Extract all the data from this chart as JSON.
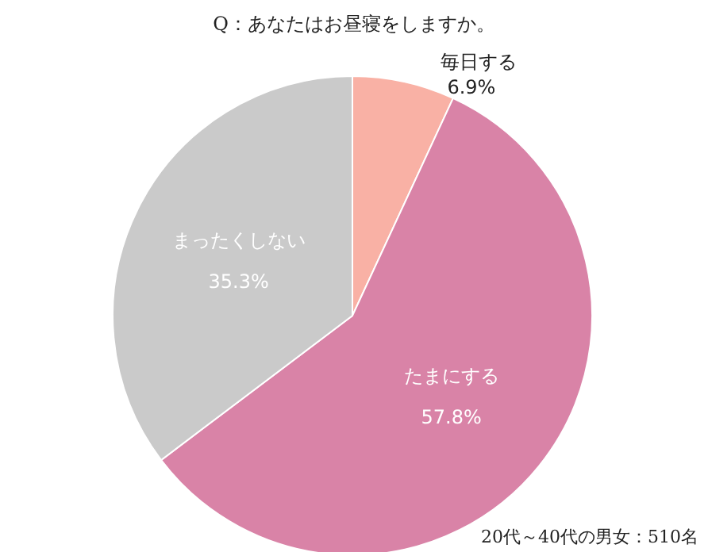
{
  "chart_data": {
    "type": "pie",
    "title": "Q：あなたはお昼寝をしますか。",
    "categories": [
      "毎日する",
      "たまにする",
      "まったくしない"
    ],
    "values": [
      6.9,
      57.8,
      35.3
    ],
    "colors": [
      "#f9b1a5",
      "#d983a7",
      "#cacaca"
    ],
    "value_labels": [
      "6.9%",
      "57.8%",
      "35.3%"
    ],
    "annotations": [
      "20代～40代の男女：510名"
    ]
  }
}
